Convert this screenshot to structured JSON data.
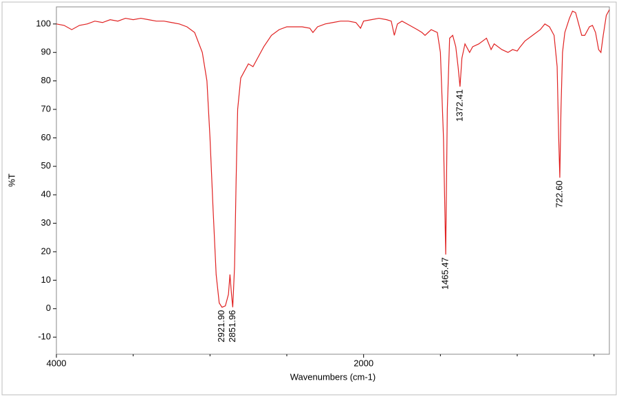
{
  "chart_data": {
    "type": "line",
    "xlabel": "Wavenumbers (cm-1)",
    "ylabel": "%T",
    "xlim": [
      4000,
      400
    ],
    "ylim": [
      -16,
      106
    ],
    "xticks": [
      4000,
      2000
    ],
    "xminor": [
      3500,
      3000,
      2500,
      1500,
      1000,
      500
    ],
    "yticks": [
      -10,
      0,
      10,
      20,
      30,
      40,
      50,
      60,
      70,
      80,
      90,
      100
    ],
    "series": [
      {
        "color": "#e02020",
        "x": [
          4000,
          3950,
          3900,
          3850,
          3800,
          3750,
          3700,
          3650,
          3600,
          3550,
          3500,
          3450,
          3400,
          3350,
          3300,
          3250,
          3200,
          3150,
          3100,
          3050,
          3020,
          3000,
          2980,
          2960,
          2940,
          2921.9,
          2900,
          2880,
          2870,
          2860,
          2851.96,
          2840,
          2830,
          2820,
          2800,
          2780,
          2750,
          2720,
          2700,
          2650,
          2600,
          2550,
          2500,
          2450,
          2400,
          2350,
          2330,
          2300,
          2250,
          2200,
          2150,
          2100,
          2050,
          2020,
          2000,
          1950,
          1900,
          1850,
          1820,
          1800,
          1780,
          1750,
          1700,
          1650,
          1620,
          1600,
          1580,
          1560,
          1540,
          1520,
          1500,
          1480,
          1465.47,
          1455,
          1440,
          1420,
          1400,
          1385,
          1372.41,
          1360,
          1340,
          1310,
          1290,
          1250,
          1200,
          1170,
          1150,
          1100,
          1060,
          1030,
          1000,
          980,
          950,
          900,
          850,
          820,
          790,
          760,
          740,
          730,
          722.6,
          715,
          705,
          690,
          660,
          640,
          620,
          600,
          580,
          560,
          530,
          510,
          490,
          470,
          455,
          440,
          420,
          400
        ],
        "values": [
          100,
          99.5,
          98,
          99.5,
          100,
          101,
          100.5,
          101.5,
          101,
          102,
          101.5,
          102,
          101.5,
          101,
          101,
          100.5,
          100,
          99,
          97,
          90,
          80,
          60,
          35,
          12,
          2,
          0.5,
          1,
          5,
          12,
          5,
          0.5,
          15,
          45,
          70,
          81,
          83,
          86,
          85,
          87,
          92,
          96,
          98,
          99,
          99,
          99,
          98.5,
          97,
          99,
          100,
          100.5,
          101,
          101,
          100.5,
          98.5,
          101,
          101.5,
          102,
          101.5,
          101,
          96,
          100,
          101,
          99.5,
          98,
          97,
          96,
          97,
          98,
          97.5,
          97,
          90,
          60,
          19,
          70,
          95,
          96,
          92,
          85,
          78,
          88,
          93,
          90,
          92,
          93,
          95,
          91,
          93,
          91,
          90,
          91,
          90.5,
          92,
          94,
          96,
          98,
          100,
          99,
          96,
          85,
          60,
          46,
          70,
          90,
          97,
          102,
          104.5,
          104,
          100,
          96,
          96,
          99,
          99.5,
          97,
          91,
          90,
          96,
          103,
          105
        ]
      }
    ],
    "annotations": [
      {
        "text": "2921.90",
        "x": 2921.9,
        "y": 0.5
      },
      {
        "text": "2851.96",
        "x": 2851.96,
        "y": 0.5
      },
      {
        "text": "1465.47",
        "x": 1465.47,
        "y": 19
      },
      {
        "text": "1372.41",
        "x": 1372.41,
        "y": 78
      },
      {
        "text": "722.60",
        "x": 722.6,
        "y": 46
      }
    ]
  }
}
